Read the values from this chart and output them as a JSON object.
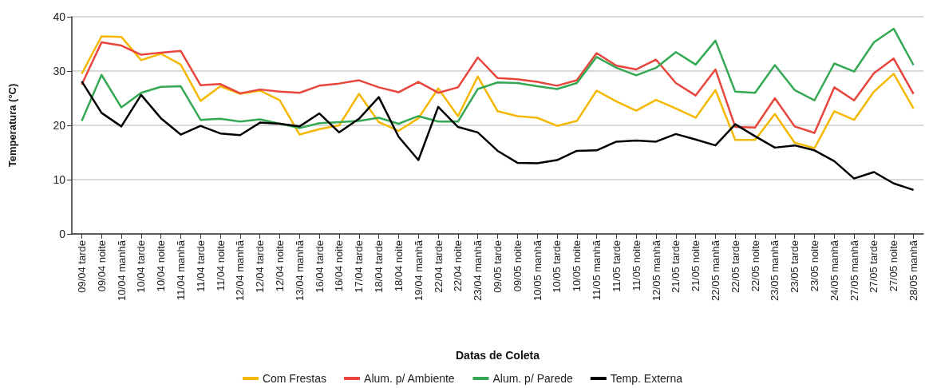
{
  "chart_data": {
    "type": "line",
    "xlabel": "Datas de Coleta",
    "ylabel": "Temperatura (°C)",
    "categories": [
      "09/04 tarde",
      "09/04 noite",
      "10/04 manhã",
      "10/04 tarde",
      "10/04 noite",
      "11/04 manhã",
      "11/04 tarde",
      "11/04 noite",
      "12/04 manhã",
      "12/04 tarde",
      "12/04 noite",
      "13/04 manhã",
      "16/04 tarde",
      "16/04 noite",
      "17/04 tarde",
      "18/04 tarde",
      "18/04 noite",
      "19/04 manhã",
      "22/04 tarde",
      "22/04 noite",
      "23/04 manhã",
      "09/05 tarde",
      "09/05 noite",
      "10/05 manhã",
      "10/05 tarde",
      "10/05 noite",
      "11/05 manhã",
      "11/05 tarde",
      "11/05 noite",
      "12/05 manhã",
      "21/05 tarde",
      "21/05 noite",
      "22/05 manhã",
      "22/05 tarde",
      "22/05 noite",
      "23/05 manhã",
      "23/05 tarde",
      "23/05 noite",
      "24/05 manhã",
      "27/05 manhã",
      "27/05 tarde",
      "27/05 noite",
      "28/05 manhã"
    ],
    "series": [
      {
        "name": "Com Frestas",
        "color": "#f5b800",
        "values": [
          29.5,
          36.4,
          36.3,
          32,
          33.2,
          31.2,
          24.5,
          27.2,
          25.8,
          26.4,
          24.6,
          18.3,
          19.3,
          20,
          25.8,
          20.6,
          19,
          21.3,
          26.8,
          21.7,
          29,
          22.6,
          21.7,
          21.4,
          19.9,
          20.8,
          26.4,
          24.4,
          22.7,
          24.7,
          23.1,
          21.4,
          26.5,
          17.3,
          17.3,
          22.1,
          16.8,
          15.8,
          22.6,
          21,
          26.2,
          29.5,
          23.1
        ]
      },
      {
        "name": "Alum. p/ Ambiente",
        "color": "#e8453c",
        "values": [
          27.5,
          35.3,
          34.7,
          33,
          33.4,
          33.7,
          27.4,
          27.6,
          25.9,
          26.6,
          26.2,
          26,
          27.3,
          27.7,
          28.3,
          27,
          26.1,
          28,
          26,
          27,
          32.5,
          28.7,
          28.5,
          28,
          27.3,
          28.3,
          33.3,
          31,
          30.3,
          32.1,
          27.8,
          25.5,
          30.3,
          19.7,
          19.6,
          25,
          19.8,
          18.6,
          27,
          24.6,
          29.6,
          32.3,
          25.8
        ]
      },
      {
        "name": "Alum. p/ Parede",
        "color": "#34a853",
        "values": [
          20.8,
          29.3,
          23.3,
          26,
          27.1,
          27.2,
          21,
          21.2,
          20.7,
          21.1,
          20.3,
          19.5,
          20.4,
          20.6,
          20.8,
          21.4,
          20.3,
          21.7,
          20.7,
          20.7,
          26.7,
          27.9,
          27.8,
          27.2,
          26.7,
          27.8,
          32.6,
          30.6,
          29.2,
          30.6,
          33.5,
          31.2,
          35.6,
          26.2,
          26,
          31.1,
          26.5,
          24.6,
          31.4,
          29.9,
          35.3,
          37.8,
          31.1
        ]
      },
      {
        "name": "Temp. Externa",
        "color": "#000000",
        "values": [
          28.1,
          22.3,
          19.8,
          25.6,
          21.3,
          18.3,
          19.9,
          18.5,
          18.2,
          20.5,
          20.3,
          19.8,
          22.2,
          18.7,
          21.2,
          25.2,
          17.9,
          13.6,
          23.4,
          19.7,
          18.7,
          15.3,
          13.1,
          13,
          13.6,
          15.3,
          15.4,
          17,
          17.2,
          17,
          18.4,
          17.4,
          16.3,
          20.2,
          18,
          15.9,
          16.3,
          15.4,
          13.4,
          10.2,
          11.4,
          9.3,
          8.1
        ]
      }
    ],
    "ylim": [
      0,
      40
    ],
    "yticks": [
      0,
      10,
      20,
      30,
      40
    ],
    "grid": "y",
    "legend": "bottom",
    "marker": "none",
    "line_style": "solid"
  }
}
